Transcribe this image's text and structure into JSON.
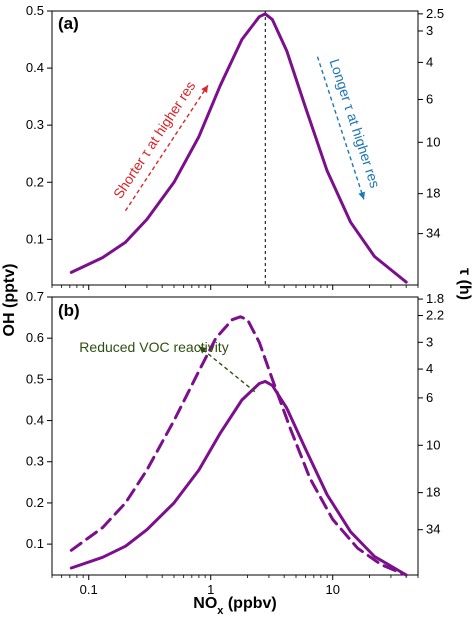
{
  "chart_data": [
    {
      "type": "line",
      "panel_label": "(a)",
      "xscale": "log",
      "xlim": [
        0.05,
        50
      ],
      "ylim": [
        0.02,
        0.5
      ],
      "yticks": [
        0.1,
        0.2,
        0.3,
        0.4,
        0.5
      ],
      "ytick_labels": [
        "0.1",
        "0.2",
        "0.3",
        "0.4",
        "0.5"
      ],
      "right_tau_ticks": [
        "2.5",
        "3",
        "4",
        "6",
        "10",
        "18",
        "34"
      ],
      "right_tau_tick_oh": [
        0.495,
        0.465,
        0.41,
        0.345,
        0.27,
        0.18,
        0.11
      ],
      "vline_x": 2.8,
      "series": [
        {
          "style": "solid",
          "color": "#7b0f8c",
          "x": [
            0.072,
            0.13,
            0.2,
            0.3,
            0.5,
            0.8,
            1.2,
            1.8,
            2.5,
            2.8,
            3.2,
            4.2,
            6,
            9,
            14,
            22,
            40
          ],
          "y": [
            0.042,
            0.068,
            0.095,
            0.135,
            0.2,
            0.28,
            0.37,
            0.45,
            0.49,
            0.495,
            0.485,
            0.43,
            0.33,
            0.22,
            0.13,
            0.07,
            0.025
          ]
        }
      ],
      "annotations": [
        {
          "text": "Shorter τ at higher res",
          "color": "#d8262a",
          "from": [
            0.2,
            0.15
          ],
          "to": [
            0.95,
            0.37
          ]
        },
        {
          "text": "Longer τ at higher res",
          "color": "#1f77b4",
          "from": [
            7.5,
            0.42
          ],
          "to": [
            18,
            0.17
          ]
        }
      ]
    },
    {
      "type": "line",
      "panel_label": "(b)",
      "xscale": "log",
      "xlim": [
        0.05,
        50
      ],
      "ylim": [
        0.025,
        0.7
      ],
      "yticks": [
        0.1,
        0.2,
        0.3,
        0.4,
        0.5,
        0.6,
        0.7
      ],
      "ytick_labels": [
        "0.1",
        "0.2",
        "0.3",
        "0.4",
        "0.5",
        "0.6",
        "0.7"
      ],
      "xticks": [
        0.1,
        1,
        10
      ],
      "xtick_labels": [
        "0.1",
        "1",
        "10"
      ],
      "right_tau_ticks": [
        "1.8",
        "2.2",
        "3",
        "4",
        "6",
        "10",
        "18",
        "34"
      ],
      "right_tau_tick_oh": [
        0.695,
        0.655,
        0.59,
        0.525,
        0.455,
        0.34,
        0.225,
        0.135
      ],
      "series": [
        {
          "style": "solid",
          "color": "#7b0f8c",
          "x": [
            0.072,
            0.13,
            0.2,
            0.3,
            0.5,
            0.8,
            1.2,
            1.8,
            2.5,
            2.8,
            3.2,
            4.2,
            6,
            9,
            14,
            22,
            40
          ],
          "y": [
            0.042,
            0.068,
            0.095,
            0.135,
            0.2,
            0.28,
            0.37,
            0.45,
            0.49,
            0.495,
            0.485,
            0.43,
            0.33,
            0.22,
            0.13,
            0.07,
            0.025
          ]
        },
        {
          "style": "dashed",
          "color": "#7b0f8c",
          "x": [
            0.072,
            0.13,
            0.2,
            0.3,
            0.5,
            0.8,
            1.1,
            1.5,
            1.75,
            2.0,
            2.5,
            3.2,
            4.5,
            6.5,
            10,
            16,
            25,
            40
          ],
          "y": [
            0.085,
            0.14,
            0.2,
            0.28,
            0.4,
            0.52,
            0.6,
            0.645,
            0.652,
            0.645,
            0.59,
            0.5,
            0.38,
            0.26,
            0.16,
            0.09,
            0.05,
            0.025
          ]
        }
      ],
      "annotations": [
        {
          "text": "Reduced VOC reactivity",
          "color": "#2f4f10",
          "from": [
            2.3,
            0.47
          ],
          "to": [
            0.8,
            0.58
          ]
        }
      ]
    }
  ],
  "labels": {
    "ylabel": "OH (pptv)",
    "xlabel_main": "NO",
    "xlabel_sub": "x",
    "xlabel_unit": " (ppbv)",
    "right_label": "τ (h)"
  }
}
